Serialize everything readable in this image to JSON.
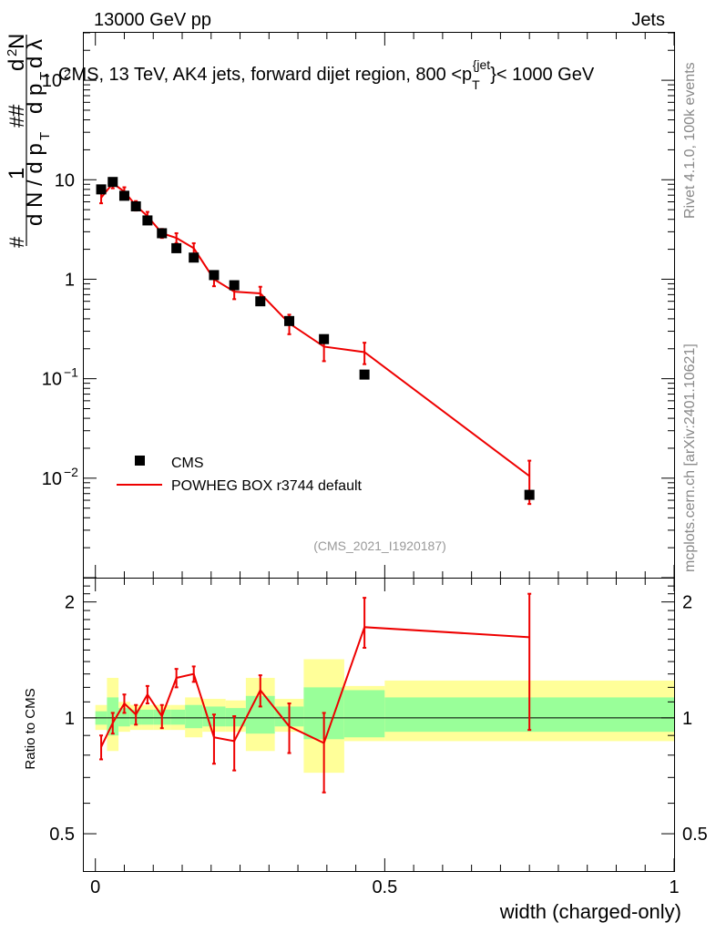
{
  "header": {
    "left": "13000 GeV pp",
    "right": "Jets"
  },
  "side_text": {
    "rivet": "Rivet 4.1.0,  100k events",
    "mcplots": "mcplots.cern.ch [arXiv:2401.10621]"
  },
  "colors": {
    "data": "#000000",
    "mc": "#ee0000",
    "band_inner": "#99ff99",
    "band_outer": "#ffff99"
  },
  "chart_data": [
    {
      "type": "scatter",
      "scale": "log",
      "title": "CMS, 13 TeV, AK4 jets, forward dijet region, 800 <p_T^{jet}< 1000 GeV",
      "ylabel": "1/(dN/dp_T) d²N/(dp_T dλ)",
      "ylim": [
        0.001,
        300
      ],
      "yticks": [
        {
          "value": 100,
          "label": "10",
          "exp": "2"
        },
        {
          "value": 10,
          "label": "10",
          "exp": ""
        },
        {
          "value": 1,
          "label": "1",
          "exp": ""
        },
        {
          "value": 0.1,
          "label": "10",
          "exp": "−1"
        },
        {
          "value": 0.01,
          "label": "10",
          "exp": "−2"
        }
      ],
      "watermark": "(CMS_2021_I1920187)",
      "legend": [
        {
          "name": "CMS",
          "marker": "square"
        },
        {
          "name": "POWHEG BOX r3744 default",
          "marker": "line"
        }
      ],
      "series": [
        {
          "name": "CMS",
          "x": [
            0.01,
            0.03,
            0.05,
            0.07,
            0.09,
            0.115,
            0.14,
            0.17,
            0.205,
            0.24,
            0.285,
            0.335,
            0.395,
            0.465,
            0.75
          ],
          "y": [
            8.0,
            9.5,
            6.9,
            5.4,
            3.9,
            2.9,
            2.05,
            1.65,
            1.1,
            0.87,
            0.6,
            0.38,
            0.25,
            0.11,
            0.0068
          ]
        },
        {
          "name": "POWHEG BOX r3744 default",
          "x": [
            0.01,
            0.03,
            0.05,
            0.07,
            0.09,
            0.115,
            0.14,
            0.17,
            0.205,
            0.24,
            0.285,
            0.335,
            0.395,
            0.465,
            0.75
          ],
          "y": [
            6.6,
            9.2,
            7.6,
            5.5,
            4.3,
            2.9,
            2.6,
            2.05,
            1.0,
            0.75,
            0.72,
            0.36,
            0.21,
            0.185,
            0.0105
          ],
          "err_lo": [
            0.8,
            1.0,
            0.8,
            0.6,
            0.45,
            0.3,
            0.3,
            0.25,
            0.15,
            0.12,
            0.12,
            0.08,
            0.06,
            0.045,
            0.005
          ],
          "err_hi": [
            0.8,
            1.0,
            0.8,
            0.6,
            0.45,
            0.3,
            0.3,
            0.25,
            0.15,
            0.12,
            0.12,
            0.08,
            0.06,
            0.045,
            0.0045
          ]
        }
      ]
    },
    {
      "type": "line",
      "ylabel": "Ratio to CMS",
      "xlabel": "width (charged-only)",
      "xlim": [
        -0.02,
        1.0
      ],
      "ylim": [
        0.4,
        2.3
      ],
      "xticks": [
        {
          "value": 0,
          "label": "0"
        },
        {
          "value": 0.5,
          "label": "0.5"
        },
        {
          "value": 1,
          "label": "1"
        }
      ],
      "yticks": [
        {
          "value": 2,
          "label": "2"
        },
        {
          "value": 1,
          "label": "1"
        },
        {
          "value": 0.5,
          "label": "0.5"
        }
      ],
      "bins": [
        {
          "lo": 0.0,
          "hi": 0.02,
          "in_lo": 0.96,
          "in_hi": 1.04,
          "out_lo": 0.93,
          "out_hi": 1.08
        },
        {
          "lo": 0.02,
          "hi": 0.04,
          "in_lo": 0.9,
          "in_hi": 1.13,
          "out_lo": 0.82,
          "out_hi": 1.27
        },
        {
          "lo": 0.04,
          "hi": 0.06,
          "in_lo": 0.95,
          "in_hi": 1.06,
          "out_lo": 0.92,
          "out_hi": 1.1
        },
        {
          "lo": 0.06,
          "hi": 0.08,
          "in_lo": 0.96,
          "in_hi": 1.05,
          "out_lo": 0.93,
          "out_hi": 1.08
        },
        {
          "lo": 0.08,
          "hi": 0.1,
          "in_lo": 0.96,
          "in_hi": 1.05,
          "out_lo": 0.93,
          "out_hi": 1.08
        },
        {
          "lo": 0.1,
          "hi": 0.13,
          "in_lo": 0.96,
          "in_hi": 1.05,
          "out_lo": 0.93,
          "out_hi": 1.08
        },
        {
          "lo": 0.13,
          "hi": 0.155,
          "in_lo": 0.96,
          "in_hi": 1.05,
          "out_lo": 0.93,
          "out_hi": 1.08
        },
        {
          "lo": 0.155,
          "hi": 0.185,
          "in_lo": 0.94,
          "in_hi": 1.08,
          "out_lo": 0.89,
          "out_hi": 1.13
        },
        {
          "lo": 0.185,
          "hi": 0.225,
          "in_lo": 0.95,
          "in_hi": 1.07,
          "out_lo": 0.92,
          "out_hi": 1.12
        },
        {
          "lo": 0.225,
          "hi": 0.26,
          "in_lo": 0.95,
          "in_hi": 1.06,
          "out_lo": 0.92,
          "out_hi": 1.11
        },
        {
          "lo": 0.26,
          "hi": 0.31,
          "in_lo": 0.91,
          "in_hi": 1.14,
          "out_lo": 0.82,
          "out_hi": 1.27
        },
        {
          "lo": 0.31,
          "hi": 0.36,
          "in_lo": 0.95,
          "in_hi": 1.07,
          "out_lo": 0.92,
          "out_hi": 1.12
        },
        {
          "lo": 0.36,
          "hi": 0.43,
          "in_lo": 0.88,
          "in_hi": 1.2,
          "out_lo": 0.72,
          "out_hi": 1.42
        },
        {
          "lo": 0.43,
          "hi": 0.5,
          "in_lo": 0.89,
          "in_hi": 1.18,
          "out_lo": 0.87,
          "out_hi": 1.21
        },
        {
          "lo": 0.5,
          "hi": 1.0,
          "in_lo": 0.92,
          "in_hi": 1.13,
          "out_lo": 0.87,
          "out_hi": 1.25
        }
      ],
      "series": [
        {
          "name": "POWHEG BOX r3744 default",
          "x": [
            0.01,
            0.03,
            0.05,
            0.07,
            0.09,
            0.115,
            0.14,
            0.17,
            0.205,
            0.24,
            0.285,
            0.335,
            0.395,
            0.465,
            0.75
          ],
          "y": [
            0.84,
            0.97,
            1.09,
            1.02,
            1.15,
            1.01,
            1.27,
            1.3,
            0.89,
            0.87,
            1.18,
            0.95,
            0.86,
            1.72,
            1.62
          ],
          "err_lo": [
            0.06,
            0.06,
            0.06,
            0.06,
            0.06,
            0.07,
            0.07,
            0.06,
            0.13,
            0.14,
            0.11,
            0.14,
            0.22,
            0.2,
            0.69
          ],
          "err_hi": [
            0.06,
            0.06,
            0.06,
            0.06,
            0.06,
            0.07,
            0.07,
            0.06,
            0.13,
            0.14,
            0.11,
            0.14,
            0.17,
            0.33,
            0.48
          ]
        }
      ]
    }
  ]
}
